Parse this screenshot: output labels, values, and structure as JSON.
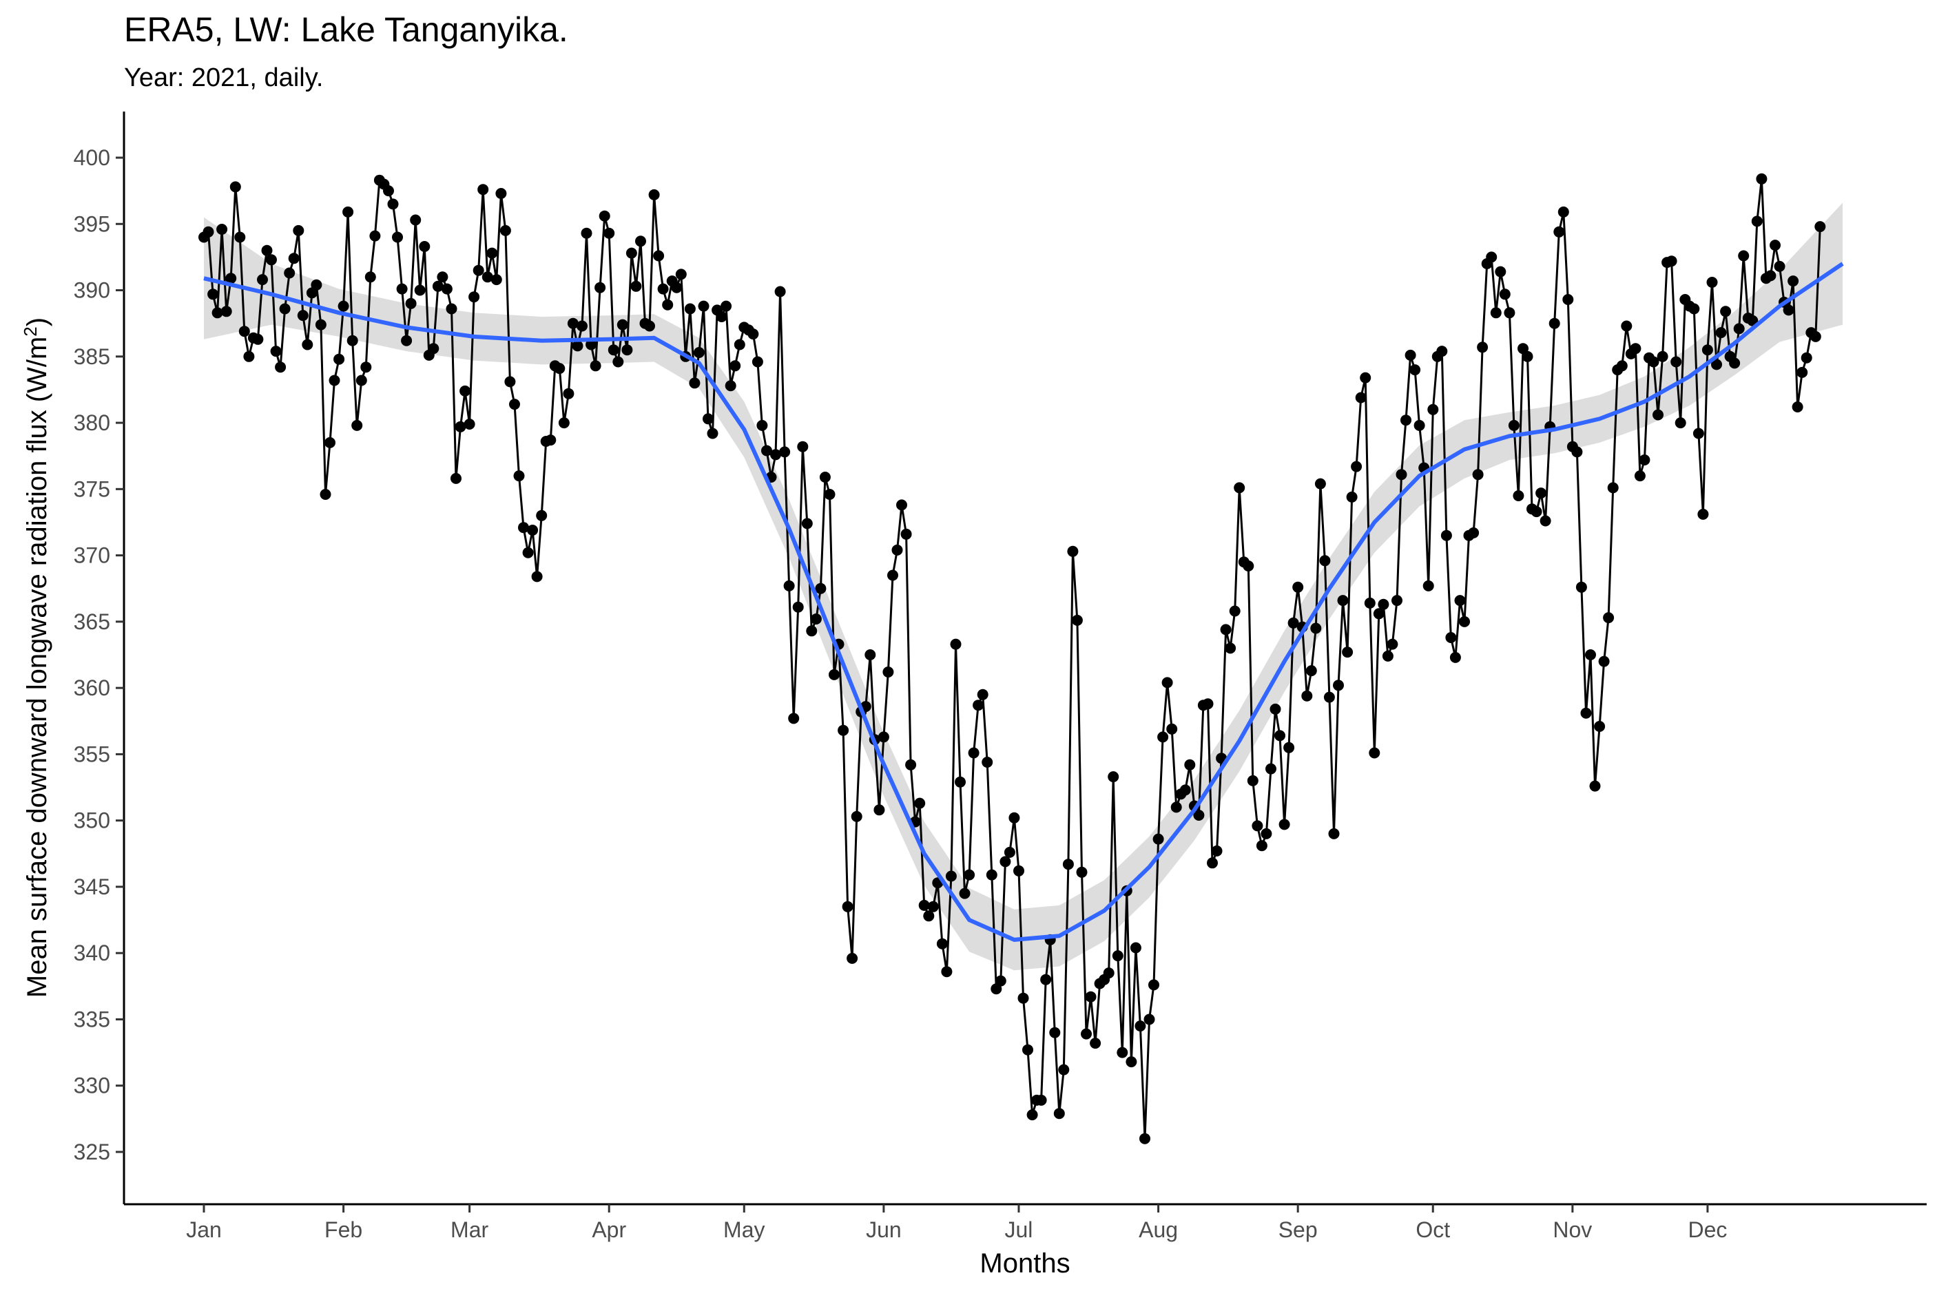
{
  "chart_data": {
    "type": "line",
    "title": "ERA5, LW: Lake Tanganyika.",
    "subtitle": "Year: 2021, daily.",
    "xlabel": "Months",
    "ylabel": "Mean surface downward longwave radiation flux (W/m²)",
    "ylabel_main": "Mean surface downward longwave radiation flux (W/m",
    "ylabel_sup": "2",
    "ylabel_end": ")",
    "x_start": "2021-01-01",
    "x_end": "2021-12-31",
    "ylim": [
      321,
      404
    ],
    "y_ticks": [
      325,
      330,
      335,
      340,
      345,
      350,
      355,
      360,
      365,
      370,
      375,
      380,
      385,
      390,
      395,
      400
    ],
    "x_ticks": [
      {
        "label": "Jan",
        "date": "2021-01-01"
      },
      {
        "label": "Feb",
        "date": "2021-02-01"
      },
      {
        "label": "Mar",
        "date": "2021-03-01"
      },
      {
        "label": "Apr",
        "date": "2021-04-01"
      },
      {
        "label": "May",
        "date": "2021-05-01"
      },
      {
        "label": "Jun",
        "date": "2021-06-01"
      },
      {
        "label": "Jul",
        "date": "2021-07-01"
      },
      {
        "label": "Aug",
        "date": "2021-08-01"
      },
      {
        "label": "Sep",
        "date": "2021-09-01"
      },
      {
        "label": "Oct",
        "date": "2021-10-01"
      },
      {
        "label": "Nov",
        "date": "2021-11-01"
      },
      {
        "label": "Dec",
        "date": "2021-12-01"
      }
    ],
    "grid": false,
    "legend": "none",
    "colors": {
      "points": "#000000",
      "line": "#000000",
      "smooth": "#3366FF",
      "ribbon": "#d9d9d9"
    },
    "series": [
      {
        "role": "daily",
        "values": [
          394.0,
          394.4,
          389.7,
          388.3,
          394.6,
          388.4,
          390.9,
          397.8,
          394.0,
          386.9,
          385.0,
          386.4,
          386.3,
          390.8,
          393.0,
          392.3,
          385.4,
          384.2,
          388.6,
          391.3,
          392.4,
          394.5,
          388.1,
          385.9,
          389.8,
          390.4,
          387.4,
          374.6,
          378.5,
          383.2,
          384.8,
          388.8,
          395.9,
          386.2,
          379.8,
          383.2,
          384.2,
          391.0,
          394.1,
          398.3,
          398.0,
          397.5,
          396.5,
          394.0,
          390.1,
          386.2,
          389.0,
          395.3,
          390.0,
          393.3,
          385.1,
          385.6,
          390.3,
          391.0,
          390.1,
          388.6,
          375.8,
          379.7,
          382.4,
          379.9,
          389.5,
          391.5,
          397.6,
          391.0,
          392.8,
          390.8,
          397.3,
          394.5,
          383.1,
          381.4,
          376.0,
          372.1,
          370.2,
          371.9,
          368.4,
          373.0,
          378.6,
          378.7,
          384.3,
          384.1,
          380.0,
          382.2,
          387.5,
          385.8,
          387.3,
          394.3,
          385.9,
          384.3,
          390.2,
          395.6,
          394.3,
          385.5,
          384.6,
          387.4,
          385.5,
          392.8,
          390.3,
          393.7,
          387.5,
          387.3,
          397.2,
          392.6,
          390.1,
          388.9,
          390.7,
          390.2,
          391.2,
          385.0,
          388.6,
          383.0,
          385.3,
          388.8,
          380.3,
          379.2,
          388.5,
          388.0,
          388.8,
          382.8,
          384.3,
          385.9,
          387.2,
          387.0,
          386.7,
          384.6,
          379.8,
          377.9,
          375.9,
          377.6,
          389.9,
          377.8,
          367.7,
          357.7,
          366.1,
          378.2,
          372.4,
          364.3,
          365.2,
          367.5,
          375.9,
          374.6,
          361.0,
          363.3,
          356.8,
          343.5,
          339.6,
          350.3,
          358.2,
          358.6,
          362.5,
          356.1,
          350.8,
          356.3,
          361.2,
          368.5,
          370.4,
          373.8,
          371.6,
          354.2,
          349.9,
          351.3,
          343.6,
          342.8,
          343.5,
          345.3,
          340.7,
          338.6,
          345.8,
          363.3,
          352.9,
          344.5,
          345.9,
          355.1,
          358.7,
          359.5,
          354.4,
          345.9,
          337.3,
          337.9,
          346.9,
          347.6,
          350.2,
          346.2,
          336.6,
          332.7,
          327.8,
          328.9,
          328.9,
          338.0,
          341.0,
          334.0,
          327.9,
          331.2,
          346.7,
          370.3,
          365.1,
          346.1,
          333.9,
          336.7,
          333.2,
          337.7,
          338.0,
          338.5,
          353.3,
          339.8,
          332.5,
          344.7,
          331.8,
          340.4,
          334.5,
          326.0,
          335.0,
          337.6,
          348.6,
          356.3,
          360.4,
          356.9,
          351.0,
          352.0,
          352.3,
          354.2,
          351.1,
          350.4,
          358.7,
          358.8,
          346.8,
          347.7,
          354.7,
          364.4,
          363.0,
          365.8,
          375.1,
          369.5,
          369.2,
          353.0,
          349.6,
          348.1,
          349.0,
          353.9,
          358.4,
          356.4,
          349.7,
          355.5,
          364.9,
          367.6,
          364.6,
          359.4,
          361.3,
          364.5,
          375.4,
          369.6,
          359.3,
          349.0,
          360.2,
          366.6,
          362.7,
          374.4,
          376.7,
          381.9,
          383.4,
          366.4,
          355.1,
          365.6,
          366.3,
          362.4,
          363.3,
          366.6,
          376.1,
          380.2,
          385.1,
          384.0,
          379.8,
          376.6,
          367.7,
          381.0,
          385.0,
          385.4,
          371.5,
          363.8,
          362.3,
          366.6,
          365.0,
          371.5,
          371.7,
          376.1,
          385.7,
          392.0,
          392.5,
          388.3,
          391.4,
          389.7,
          388.3,
          379.8,
          374.5,
          385.6,
          385.0,
          373.5,
          373.3,
          374.7,
          372.6,
          379.7,
          387.5,
          394.4,
          395.9,
          389.3,
          378.2,
          377.8,
          367.6,
          358.1,
          362.5,
          352.6,
          357.1,
          362.0,
          365.3,
          375.1,
          384.0,
          384.3,
          387.3,
          385.2,
          385.6,
          376.0,
          377.2,
          384.9,
          384.6,
          380.6,
          385.0,
          392.1,
          392.2,
          384.6,
          380.0,
          389.3,
          388.8,
          388.6,
          379.2,
          373.1,
          385.5,
          390.6,
          384.4,
          386.8,
          388.4,
          385.0,
          384.5,
          387.1,
          392.6,
          387.9,
          387.7,
          395.2,
          398.4,
          390.9,
          391.1,
          393.4,
          391.8,
          389.1,
          388.5,
          390.7,
          381.2,
          383.8,
          384.9,
          386.8,
          386.5,
          394.8
        ]
      },
      {
        "role": "smooth",
        "x_days": [
          0,
          15,
          30,
          45,
          60,
          75,
          90,
          100,
          110,
          120,
          130,
          140,
          150,
          160,
          170,
          180,
          190,
          200,
          210,
          220,
          230,
          240,
          250,
          260,
          270,
          280,
          290,
          300,
          310,
          320,
          330,
          340,
          350,
          364
        ],
        "values": [
          390.9,
          389.7,
          388.3,
          387.2,
          386.5,
          386.2,
          386.3,
          386.4,
          384.5,
          379.5,
          372.0,
          363.5,
          355.0,
          347.5,
          342.5,
          341.0,
          341.3,
          343.2,
          346.5,
          350.8,
          356.0,
          362.0,
          367.5,
          372.5,
          376.0,
          378.0,
          379.0,
          379.5,
          380.3,
          381.6,
          383.5,
          386.0,
          388.8,
          392.0
        ],
        "band_half_width": [
          4.6,
          2.3,
          1.8,
          1.8,
          1.8,
          1.8,
          1.8,
          1.8,
          1.9,
          2.1,
          2.2,
          2.3,
          2.4,
          2.4,
          2.4,
          2.3,
          2.3,
          2.3,
          2.3,
          2.3,
          2.3,
          2.3,
          2.3,
          2.3,
          2.3,
          2.2,
          1.8,
          1.8,
          1.8,
          1.9,
          2.2,
          2.4,
          2.7,
          4.6
        ]
      }
    ]
  }
}
